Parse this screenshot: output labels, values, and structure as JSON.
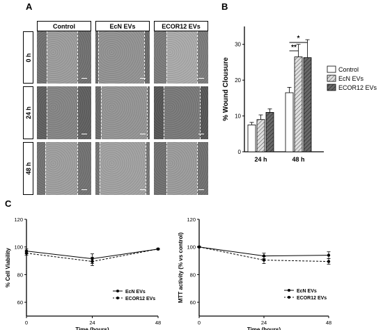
{
  "panel_a": {
    "label": "A",
    "columns": [
      "Control",
      "EcN EVs",
      "ECOR12 EVs"
    ],
    "rows": [
      "0 h",
      "24 h",
      "48 h"
    ]
  },
  "panel_b_label": "B",
  "panel_c_label": "C",
  "chart_data": [
    {
      "id": "wound_closure",
      "type": "bar",
      "categories": [
        "24 h",
        "48 h"
      ],
      "series": [
        {
          "name": "Control",
          "values": [
            7.5,
            16.5
          ],
          "errors": [
            0.7,
            1.5
          ],
          "color": "#ffffff",
          "pattern": "none"
        },
        {
          "name": "EcN EVs",
          "values": [
            9.0,
            26.5
          ],
          "errors": [
            1.3,
            3.5
          ],
          "color": "#c8c8c8",
          "pattern": "hatch"
        },
        {
          "name": "ECOR12 EVs",
          "values": [
            11.0,
            26.3
          ],
          "errors": [
            1.0,
            5.0
          ],
          "color": "#5a5a5a",
          "pattern": "hatch"
        }
      ],
      "ylabel": "% Wound Clousure",
      "xlabel": "",
      "ylim": [
        0,
        35
      ],
      "yticks": [
        0,
        10,
        20,
        30
      ],
      "legend": "right",
      "annotations": [
        "**",
        "*"
      ]
    },
    {
      "id": "cell_viability",
      "type": "line",
      "x": [
        0,
        24,
        48
      ],
      "series": [
        {
          "name": "EcN EVs",
          "values": [
            97,
            91.5,
            98.5
          ],
          "errors": [
            1.5,
            3.5,
            0.5
          ],
          "dash": "solid"
        },
        {
          "name": "ECOR12 EVs",
          "values": [
            95.5,
            89.5,
            98.5
          ],
          "errors": [
            1.5,
            3.0,
            0.5
          ],
          "dash": "dashed"
        }
      ],
      "xlabel": "Time (hours)",
      "ylabel": "% Cell Viability",
      "xticks": [
        0,
        24,
        48
      ],
      "yticks": [
        60,
        80,
        100,
        120
      ],
      "ylim": [
        50,
        120
      ],
      "legend": "bottom-right"
    },
    {
      "id": "mtt_activity",
      "type": "line",
      "x": [
        0,
        24,
        48
      ],
      "series": [
        {
          "name": "EcN EVs",
          "values": [
            100,
            93.5,
            94
          ],
          "errors": [
            0.5,
            2.0,
            2.5
          ],
          "dash": "solid"
        },
        {
          "name": "ECOR12 EVs",
          "values": [
            100,
            90.5,
            89.5
          ],
          "errors": [
            0.5,
            2.5,
            2.0
          ],
          "dash": "dashed"
        }
      ],
      "xlabel": "Time (hours)",
      "ylabel": "MTT activity (% vs control)",
      "xticks": [
        0,
        24,
        48
      ],
      "yticks": [
        60,
        80,
        100,
        120
      ],
      "ylim": [
        50,
        120
      ],
      "legend": "bottom-right"
    }
  ]
}
